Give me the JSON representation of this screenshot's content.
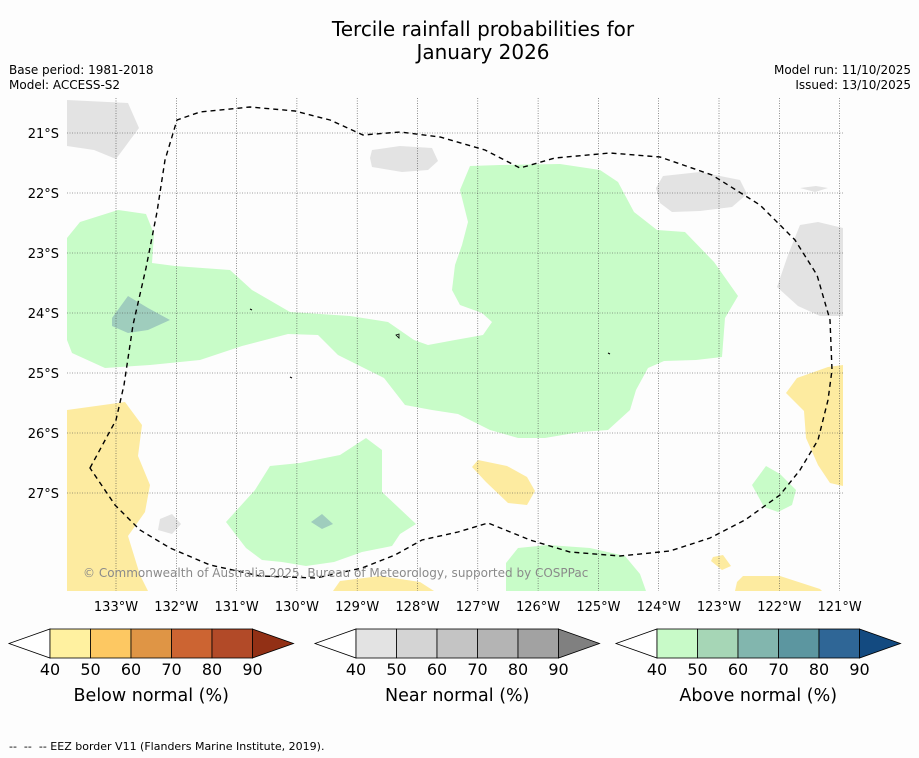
{
  "header": {
    "title_line1": "Tercile rainfall probabilities for",
    "title_line2": "January 2026",
    "base_period": "Base period: 1981-2018",
    "model": "Model: ACCESS-S2",
    "model_run": "Model run: 11/10/2025",
    "issued": "Issued: 13/10/2025"
  },
  "map": {
    "lat_labels": [
      "21°S",
      "22°S",
      "23°S",
      "24°S",
      "25°S",
      "26°S",
      "27°S"
    ],
    "lon_labels": [
      "133°W",
      "132°W",
      "131°W",
      "130°W",
      "129°W",
      "128°W",
      "127°W",
      "126°W",
      "125°W",
      "124°W",
      "123°W",
      "122°W",
      "121°W"
    ],
    "copyright": "© Commonwealth of Australia 2025, Bureau of Meteorology, supported by COSPPac",
    "colors": {
      "below_40": "#fdeba0",
      "near_40": "#e3e3e3",
      "above_40": "#c8fcc8",
      "above_60": "#9fcdbd"
    }
  },
  "legends": [
    {
      "label": "Below normal (%)",
      "ticks": [
        "40",
        "50",
        "60",
        "70",
        "80",
        "90"
      ],
      "colors": [
        "#fff1a0",
        "#fdc862",
        "#df9545",
        "#cc6432",
        "#b24a28",
        "#923015"
      ]
    },
    {
      "label": "Near normal (%)",
      "ticks": [
        "40",
        "50",
        "60",
        "70",
        "80",
        "90"
      ],
      "colors": [
        "#e3e3e3",
        "#d4d4d4",
        "#c4c4c4",
        "#b4b4b4",
        "#a2a2a2",
        "#808080"
      ]
    },
    {
      "label": "Above normal (%)",
      "ticks": [
        "40",
        "50",
        "60",
        "70",
        "80",
        "90"
      ],
      "colors": [
        "#c8fac8",
        "#a6d6b6",
        "#82b6ae",
        "#5c96a0",
        "#2f6696",
        "#134a80"
      ]
    }
  ],
  "footer": {
    "eez_note": "--  --  -- EEZ border V11 (Flanders Marine Institute, 2019)."
  }
}
